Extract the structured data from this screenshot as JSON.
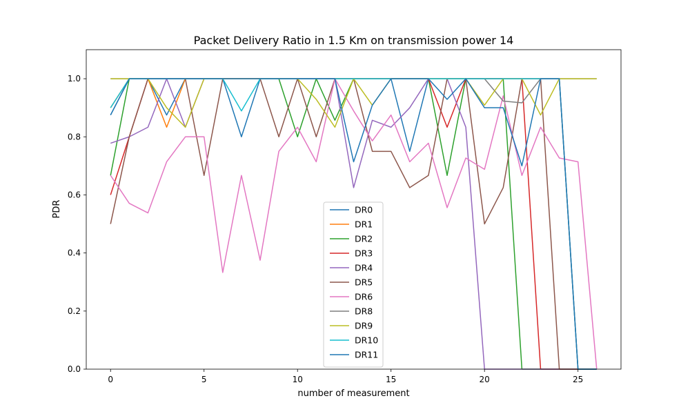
{
  "chart_data": {
    "type": "line",
    "title": "Packet Delivery Ratio in 1.5 Km on transmission power 14",
    "xlabel": "number of measurement",
    "ylabel": "PDR",
    "xlim": [
      -1.3,
      27.3
    ],
    "ylim": [
      0.0,
      1.1
    ],
    "xticks": [
      0,
      5,
      10,
      15,
      20,
      25
    ],
    "yticks": [
      0.0,
      0.2,
      0.4,
      0.6,
      0.8,
      1.0
    ],
    "legend_position": "lower-center",
    "series": [
      {
        "name": "DR0",
        "color": "#1f77b4",
        "x": [
          0,
          1,
          2,
          3,
          4,
          5,
          6,
          7,
          8,
          9,
          10,
          11,
          12,
          13,
          14,
          15,
          16,
          17,
          18,
          19,
          20,
          21,
          22,
          23,
          24,
          25,
          26
        ],
        "values": [
          0.875,
          1,
          1,
          0.875,
          1,
          1,
          1,
          0.8,
          1,
          1,
          1,
          1,
          1,
          1,
          1,
          1,
          0.75,
          1,
          1,
          1,
          1,
          1,
          1,
          1,
          1,
          0,
          0
        ]
      },
      {
        "name": "DR1",
        "color": "#ff7f0e",
        "x": [
          0,
          1,
          2,
          3,
          4,
          5,
          6,
          7,
          8,
          9,
          10,
          11,
          12,
          13,
          14,
          15,
          16,
          17,
          18,
          19,
          20,
          21,
          22,
          23,
          24,
          25,
          26
        ],
        "values": [
          0.9,
          1,
          1,
          0.833,
          1,
          1,
          1,
          1,
          1,
          1,
          1,
          1,
          1,
          1,
          1,
          1,
          1,
          1,
          1,
          1,
          1,
          1,
          1,
          1,
          1,
          0,
          0
        ]
      },
      {
        "name": "DR2",
        "color": "#2ca02c",
        "x": [
          0,
          1,
          2,
          3,
          4,
          5,
          6,
          7,
          8,
          9,
          10,
          11,
          12,
          13,
          14,
          15,
          16,
          17,
          18,
          19,
          20,
          21,
          22,
          23,
          24,
          25,
          26
        ],
        "values": [
          0.667,
          1,
          1,
          1,
          1,
          1,
          1,
          1,
          1,
          1,
          0.8,
          1,
          0.857,
          1,
          1,
          1,
          1,
          1,
          0.667,
          1,
          1,
          1,
          0,
          0,
          0,
          0,
          0
        ]
      },
      {
        "name": "DR3",
        "color": "#d62728",
        "x": [
          0,
          1,
          2,
          3,
          4,
          5,
          6,
          7,
          8,
          9,
          10,
          11,
          12,
          13,
          14,
          15,
          16,
          17,
          18,
          19,
          20,
          21,
          22,
          23,
          24,
          25,
          26
        ],
        "values": [
          0.6,
          0.8,
          1,
          1,
          1,
          1,
          1,
          1,
          1,
          1,
          1,
          1,
          1,
          1,
          1,
          1,
          1,
          1,
          0.833,
          1,
          1,
          1,
          1,
          0,
          0,
          0,
          0
        ]
      },
      {
        "name": "DR4",
        "color": "#9467bd",
        "x": [
          0,
          1,
          2,
          3,
          4,
          5,
          6,
          7,
          8,
          9,
          10,
          11,
          12,
          13,
          14,
          15,
          16,
          17,
          18,
          19,
          20,
          21,
          22,
          23,
          24,
          25,
          26
        ],
        "values": [
          0.778,
          0.8,
          0.833,
          1,
          0.833,
          1,
          1,
          1,
          1,
          1,
          1,
          1,
          1,
          0.625,
          0.857,
          0.833,
          0.9,
          1,
          1,
          0.833,
          0,
          0,
          0,
          0,
          0,
          0,
          0
        ]
      },
      {
        "name": "DR5",
        "color": "#8c564b",
        "x": [
          0,
          1,
          2,
          3,
          4,
          5,
          6,
          7,
          8,
          9,
          10,
          11,
          12,
          13,
          14,
          15,
          16,
          17,
          18,
          19,
          20,
          21,
          22,
          23,
          24,
          25,
          26
        ],
        "values": [
          0.5,
          0.8,
          1,
          1,
          1,
          0.667,
          1,
          1,
          1,
          0.8,
          1,
          0.8,
          1,
          1,
          0.75,
          0.75,
          0.625,
          0.667,
          1,
          1,
          0.5,
          0.625,
          1,
          1,
          0,
          0,
          0
        ]
      },
      {
        "name": "DR6",
        "color": "#e377c2",
        "x": [
          0,
          1,
          2,
          3,
          4,
          5,
          6,
          7,
          8,
          9,
          10,
          11,
          12,
          13,
          14,
          15,
          16,
          17,
          18,
          19,
          20,
          21,
          22,
          23,
          24,
          25,
          26
        ],
        "values": [
          0.667,
          0.571,
          0.538,
          0.714,
          0.8,
          0.8,
          0.333,
          0.667,
          0.375,
          0.75,
          0.833,
          0.714,
          1,
          0.889,
          0.786,
          0.875,
          0.714,
          0.778,
          0.556,
          0.727,
          0.688,
          0.941,
          0.667,
          0.833,
          0.727,
          0.714,
          0
        ]
      },
      {
        "name": "DR8",
        "color": "#7f7f7f",
        "x": [
          0,
          1,
          2,
          3,
          4,
          5,
          6,
          7,
          8,
          9,
          10,
          11,
          12,
          13,
          14,
          15,
          16,
          17,
          18,
          19,
          20,
          21,
          22,
          23,
          24,
          25,
          26
        ],
        "values": [
          1,
          1,
          1,
          1,
          1,
          1,
          1,
          1,
          1,
          1,
          1,
          1,
          1,
          1,
          1,
          1,
          1,
          1,
          1,
          1,
          1,
          0.923,
          0.917,
          1,
          1,
          1,
          1
        ]
      },
      {
        "name": "DR9",
        "color": "#bcbd22",
        "x": [
          0,
          1,
          2,
          3,
          4,
          5,
          6,
          7,
          8,
          9,
          10,
          11,
          12,
          13,
          14,
          15,
          16,
          17,
          18,
          19,
          20,
          21,
          22,
          23,
          24,
          25,
          26
        ],
        "values": [
          1,
          1,
          1,
          0.9,
          0.833,
          1,
          1,
          1,
          1,
          1,
          1,
          0.929,
          0.833,
          1,
          0.909,
          1,
          1,
          1,
          1,
          1,
          0.909,
          1,
          1,
          0.875,
          1,
          1,
          1
        ]
      },
      {
        "name": "DR10",
        "color": "#17becf",
        "x": [
          0,
          1,
          2,
          3,
          4,
          5,
          6,
          7,
          8,
          9,
          10,
          11,
          12,
          13,
          14,
          15,
          16,
          17,
          18,
          19,
          20,
          21,
          22,
          23,
          24,
          25,
          26
        ],
        "values": [
          0.9,
          1,
          1,
          1,
          1,
          1,
          1,
          0.889,
          1,
          1,
          1,
          1,
          1,
          1,
          1,
          1,
          1,
          1,
          1,
          1,
          1,
          1,
          1,
          1,
          1,
          0,
          0
        ]
      },
      {
        "name": "DR11",
        "color": "#1f77b4",
        "x": [
          0,
          1,
          2,
          3,
          4,
          5,
          6,
          7,
          8,
          9,
          10,
          11,
          12,
          13,
          14,
          15,
          16,
          17,
          18,
          19,
          20,
          21,
          22,
          23,
          24,
          25,
          26
        ],
        "values": [
          0.875,
          1,
          1,
          1,
          1,
          1,
          1,
          1,
          1,
          1,
          1,
          1,
          1,
          0.714,
          0.909,
          1,
          1,
          1,
          0.929,
          1,
          0.9,
          0.9,
          0.7,
          1,
          1,
          0,
          0
        ]
      }
    ]
  }
}
